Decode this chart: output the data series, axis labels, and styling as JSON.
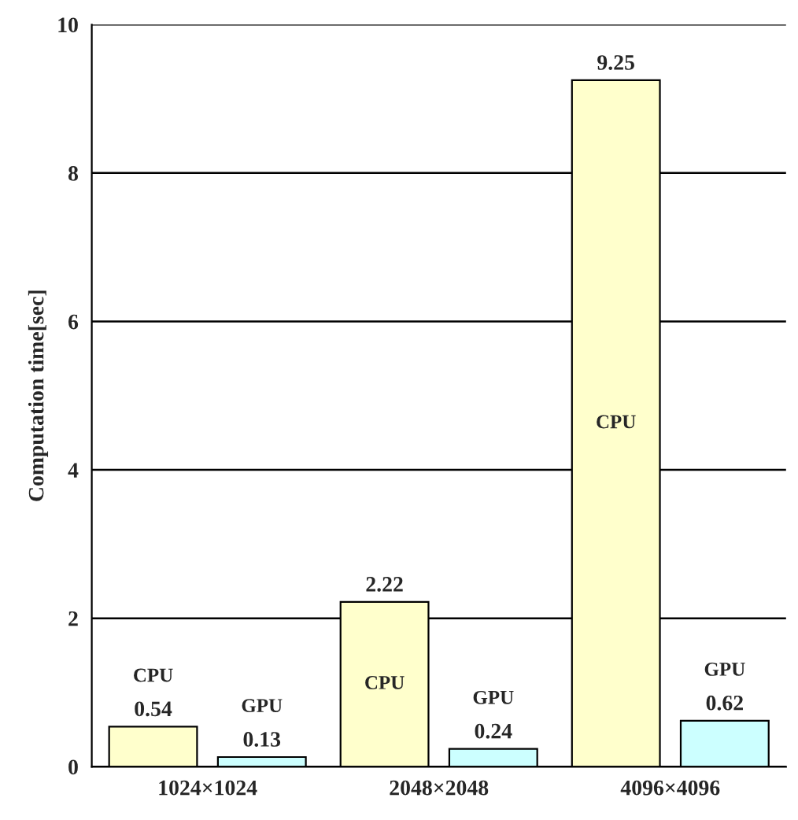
{
  "chart_data": {
    "type": "bar",
    "ylabel": "Computation time[sec]",
    "categories": [
      "1024×1024",
      "2048×2048",
      "4096×4096"
    ],
    "series": [
      {
        "name": "CPU",
        "color": "#ffffcc",
        "values": [
          0.54,
          2.22,
          9.25
        ]
      },
      {
        "name": "GPU",
        "color": "#ccffff",
        "values": [
          0.13,
          0.24,
          0.62
        ]
      }
    ],
    "ylim": [
      0,
      10
    ],
    "yticks": [
      0,
      2,
      4,
      6,
      8,
      10
    ],
    "grid": "y",
    "data_labels": true,
    "legend": false
  }
}
